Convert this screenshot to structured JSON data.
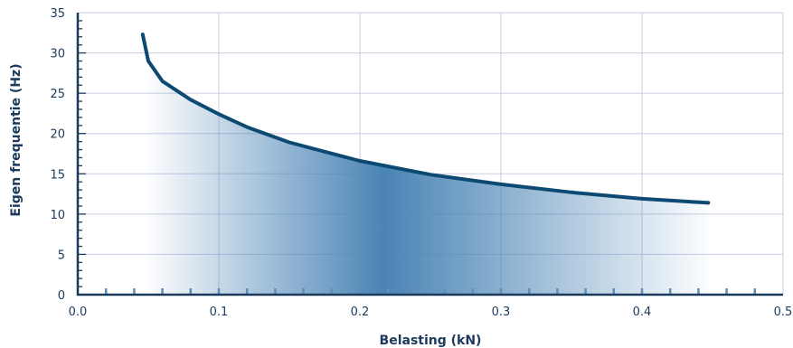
{
  "chart_data": {
    "type": "area",
    "xlabel": "Belasting (kN)",
    "ylabel": "Eigen frequentie (Hz)",
    "xlim": [
      0,
      0.5
    ],
    "ylim": [
      0,
      35
    ],
    "x_ticks": [
      "0.0",
      "0.1",
      "0.2",
      "0.3",
      "0.4",
      "0.5"
    ],
    "y_ticks": [
      "0",
      "5",
      "10",
      "15",
      "20",
      "25",
      "30",
      "35"
    ],
    "grid": true,
    "series": [
      {
        "x": [
          0.046,
          0.05,
          0.06,
          0.08,
          0.1,
          0.12,
          0.15,
          0.2,
          0.25,
          0.3,
          0.35,
          0.4,
          0.447
        ],
        "y": [
          32.3,
          29.0,
          26.5,
          24.2,
          22.4,
          20.8,
          18.9,
          16.6,
          14.9,
          13.7,
          12.7,
          11.9,
          11.4
        ]
      }
    ],
    "colors": {
      "line": "#0d4a73",
      "fill_peak": "#4a84b5",
      "grid": "#c9cde4",
      "axis": "#1b3a5c",
      "tick_marks": "#5f8fb8"
    }
  }
}
